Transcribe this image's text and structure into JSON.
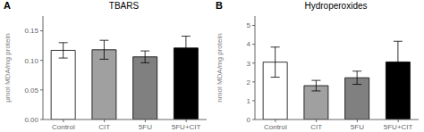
{
  "chart_data": [
    {
      "type": "bar",
      "title": "TBARS",
      "annotations": [
        "A"
      ],
      "categories": [
        "Control",
        "CIT",
        "5FU",
        "5FU+CIT"
      ],
      "values": [
        0.117,
        0.118,
        0.106,
        0.121
      ],
      "errors": [
        0.013,
        0.016,
        0.01,
        0.02
      ],
      "colors": [
        "white",
        "#a0a0a0",
        "#808080",
        "black"
      ],
      "ylabel": "µmol MDA/mg protein",
      "ylim": [
        0,
        0.175
      ],
      "yticks": [
        {
          "value": 0,
          "label": "0.00"
        },
        0.05,
        {
          "value": 0.1,
          "label": "0.10"
        },
        0.15
      ]
    },
    {
      "type": "bar",
      "title": "Hydroperoxides",
      "annotations": [
        "B"
      ],
      "categories": [
        "Control",
        "CIT",
        "5FU",
        "5FU+CIT"
      ],
      "values": [
        3.05,
        1.8,
        2.22,
        3.06
      ],
      "errors": [
        0.8,
        0.28,
        0.35,
        1.1
      ],
      "colors": [
        "white",
        "#a0a0a0",
        "#808080",
        "black"
      ],
      "ylabel": "nmol MDA/mg protein",
      "ylim": [
        0,
        5.5
      ],
      "yticks": [
        0,
        1,
        2,
        3,
        4,
        5
      ]
    }
  ]
}
